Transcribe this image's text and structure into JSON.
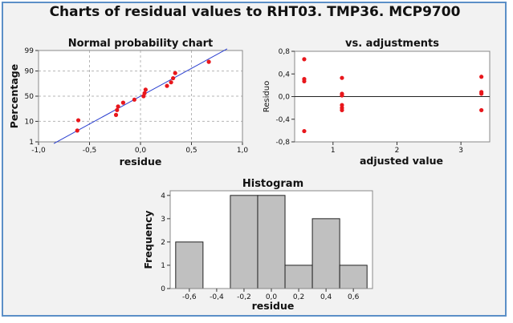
{
  "page_title": "Charts of residual values to RHT03. TMP36. MCP9700",
  "colors": {
    "points": "#e8171c",
    "fit_line": "#2a3fd0",
    "grid": "#b5b5b5",
    "bars": "#c0c0c0",
    "frame": "#5b8fc7",
    "background": "#f2f2f2"
  },
  "chart_data": [
    {
      "type": "scatter",
      "title": "Normal probability chart",
      "xlabel": "residue",
      "ylabel": "Percentage",
      "xlim": [
        -1.0,
        1.0
      ],
      "y_scale": "normal-probability",
      "ylim": [
        1,
        99
      ],
      "grid": true,
      "x_ticks": [
        -1.0,
        -0.5,
        0.0,
        0.5,
        1.0
      ],
      "x_tick_labels": [
        "-1,0",
        "-0,5",
        "0,0",
        "0,5",
        "1,0"
      ],
      "y_ticks": [
        1,
        10,
        50,
        90,
        99
      ],
      "y_tick_labels": [
        "1",
        "10",
        "50",
        "90",
        "99"
      ],
      "points": {
        "x": [
          -0.62,
          -0.61,
          -0.24,
          -0.23,
          -0.22,
          -0.17,
          -0.06,
          0.03,
          0.04,
          0.05,
          0.26,
          0.3,
          0.32,
          0.34,
          0.67
        ],
        "y": [
          4,
          11,
          17,
          24,
          30,
          37,
          43,
          50,
          56,
          63,
          70,
          76,
          82,
          88,
          96
        ]
      },
      "fit_line": {
        "x": [
          -0.85,
          0.85
        ],
        "y": [
          0.8,
          99.2
        ]
      }
    },
    {
      "type": "scatter",
      "title": "vs. adjustments",
      "xlabel": "adjusted value",
      "ylabel": "Residuo",
      "xlim": [
        0.4,
        3.45
      ],
      "ylim": [
        -0.8,
        0.8
      ],
      "grid": false,
      "reference_line_y": 0,
      "x_ticks": [
        1,
        2,
        3
      ],
      "x_tick_labels": [
        "1",
        "2",
        "3"
      ],
      "y_ticks": [
        -0.8,
        -0.4,
        0.0,
        0.4,
        0.8
      ],
      "y_tick_labels": [
        "-0,8",
        "-0,4",
        "0,0",
        "0,4",
        "0,8"
      ],
      "points": {
        "x": [
          0.55,
          0.55,
          0.55,
          0.55,
          1.14,
          1.14,
          1.14,
          1.14,
          1.14,
          1.14,
          3.32,
          3.32,
          3.32,
          3.32
        ],
        "y": [
          0.66,
          0.31,
          0.27,
          -0.61,
          0.33,
          0.05,
          0.02,
          -0.15,
          -0.2,
          -0.24,
          0.35,
          0.08,
          0.05,
          -0.24
        ]
      }
    },
    {
      "type": "bar",
      "title": "Histogram",
      "xlabel": "residue",
      "ylabel": "Frequency",
      "bin_edges": [
        -0.7,
        -0.5,
        -0.3,
        -0.1,
        0.1,
        0.3,
        0.5,
        0.7
      ],
      "values": [
        2,
        0,
        4,
        4,
        1,
        3,
        1
      ],
      "xlim": [
        -0.74,
        0.74
      ],
      "ylim": [
        0,
        4.2
      ],
      "x_ticks": [
        -0.6,
        -0.4,
        -0.2,
        0.0,
        0.2,
        0.4,
        0.6
      ],
      "x_tick_labels": [
        "-0,6",
        "-0,4",
        "-0,2",
        "0,0",
        "0,2",
        "0,4",
        "0,6"
      ],
      "y_ticks": [
        0,
        1,
        2,
        3,
        4
      ],
      "y_tick_labels": [
        "0",
        "1",
        "2",
        "3",
        "4"
      ]
    }
  ]
}
